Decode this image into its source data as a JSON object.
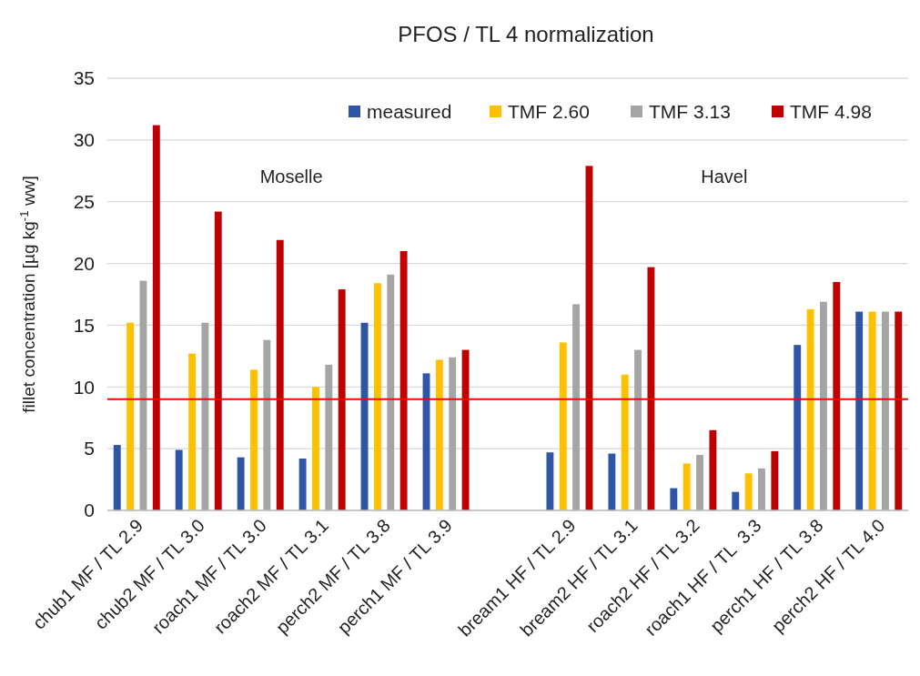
{
  "chart_data": {
    "type": "bar",
    "title": "PFOS / TL 4 normalization",
    "ylabel": "fillet concentration [µg kg$^{-1}$ ww]",
    "categories": [
      "chub1 MF / TL 2.9",
      "chub2 MF / TL 3.0",
      "roach1 MF / TL 3.0",
      "roach2 MF / TL 3.1",
      "perch2 MF / TL 3.8",
      "perch1 MF / TL 3.9",
      null,
      "bream1 HF / TL 2.9",
      "bream2 HF / TL 3.1",
      "roach2 HF / TL 3.2",
      "roach1 HF / TL  3.3",
      "perch1 HF / TL 3.8",
      "perch2 HF / TL 4.0"
    ],
    "series": [
      {
        "name": "measured",
        "color": "#2f55a4",
        "values": [
          5.3,
          4.9,
          4.3,
          4.2,
          15.2,
          11.1,
          null,
          4.7,
          4.6,
          1.8,
          1.5,
          13.4,
          16.1
        ]
      },
      {
        "name": "TMF 2.60",
        "color": "#ffc000",
        "values": [
          15.2,
          12.7,
          11.4,
          10.0,
          18.4,
          12.2,
          null,
          13.6,
          11.0,
          3.8,
          3.0,
          16.3,
          16.1
        ]
      },
      {
        "name": "TMF 3.13",
        "color": "#a5a5a5",
        "values": [
          18.6,
          15.2,
          13.8,
          11.8,
          19.1,
          12.4,
          null,
          16.7,
          13.0,
          4.5,
          3.4,
          16.9,
          16.1
        ]
      },
      {
        "name": "TMF 4.98",
        "color": "#c00000",
        "values": [
          31.2,
          24.2,
          21.9,
          17.9,
          21.0,
          13.0,
          null,
          27.9,
          19.7,
          6.5,
          4.8,
          18.5,
          16.1
        ]
      }
    ],
    "ylim": [
      0,
      35
    ],
    "yticks": [
      0,
      5,
      10,
      15,
      20,
      25,
      30,
      35
    ],
    "grid": "y",
    "legend": "top right",
    "ref_lines": [
      {
        "axis": "y",
        "value": 9,
        "color": "#ff0000"
      }
    ],
    "annotations": [
      "Moselle",
      "Havel"
    ]
  }
}
